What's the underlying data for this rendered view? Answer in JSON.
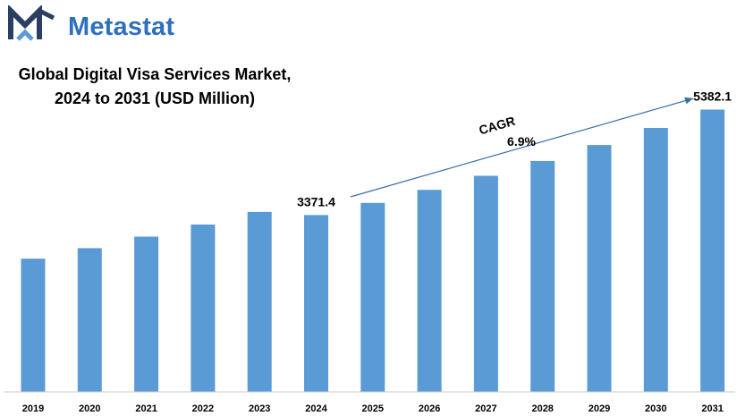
{
  "brand": {
    "name": "Metastat",
    "color": "#2e6fbf"
  },
  "chart_data": {
    "type": "bar",
    "title_lines": [
      "Global Digital Visa Services Market,",
      "2024 to 2031 (USD Million)"
    ],
    "categories": [
      "2019",
      "2020",
      "2021",
      "2022",
      "2023",
      "2024",
      "2025",
      "2026",
      "2027",
      "2028",
      "2029",
      "2030",
      "2031"
    ],
    "values": [
      2540,
      2740,
      2960,
      3190,
      3430,
      3371.4,
      3603,
      3852,
      4119,
      4403,
      4707,
      5032,
      5382.1
    ],
    "data_labels": [
      {
        "category": "2024",
        "text": "3371.4"
      },
      {
        "category": "2031",
        "text": "5382.1"
      }
    ],
    "annotation": {
      "label": "CAGR",
      "value": "6.9%"
    },
    "bar_color": "#5b9bd5",
    "ylim": [
      0,
      5800
    ],
    "grid": false,
    "legend": "none"
  }
}
